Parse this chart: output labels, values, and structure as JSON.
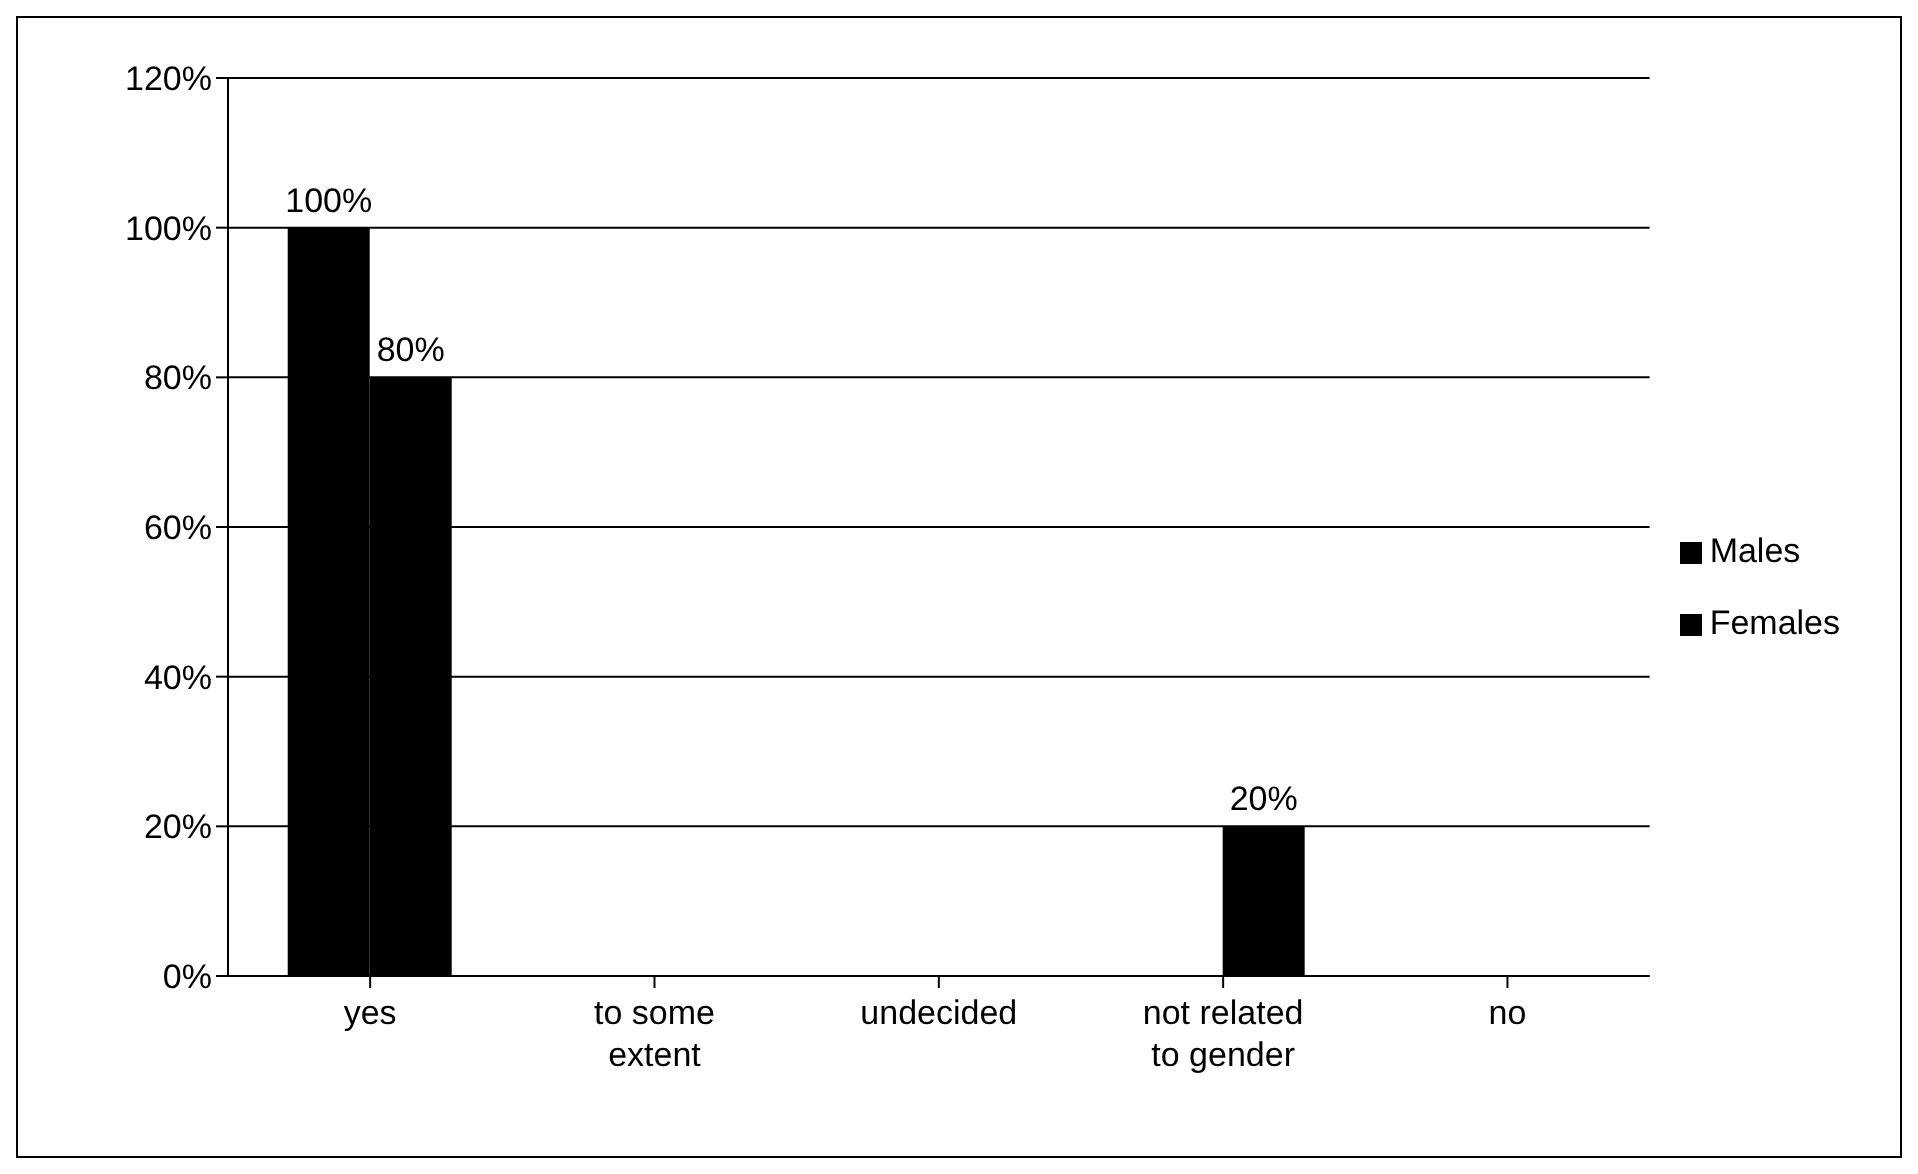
{
  "chart_data": {
    "type": "bar",
    "categories": [
      "yes",
      "to some extent",
      "undecided",
      "not related to gender",
      "no"
    ],
    "series": [
      {
        "name": "Males",
        "color": "#000000",
        "values": [
          100,
          0,
          0,
          0,
          0
        ],
        "value_labels": [
          "100%",
          null,
          null,
          null,
          null
        ]
      },
      {
        "name": "Females",
        "color": "#000000",
        "values": [
          80,
          0,
          0,
          20,
          0
        ],
        "value_labels": [
          "80%",
          null,
          null,
          "20%",
          null
        ]
      }
    ],
    "ylim": [
      0,
      120
    ],
    "yticks": [
      {
        "value": 0,
        "label": "0%"
      },
      {
        "value": 20,
        "label": "20%"
      },
      {
        "value": 40,
        "label": "40%"
      },
      {
        "value": 60,
        "label": "60%"
      },
      {
        "value": 80,
        "label": "80%"
      },
      {
        "value": 100,
        "label": "100%"
      },
      {
        "value": 120,
        "label": "120%"
      }
    ],
    "grid": "y",
    "legend": "right"
  }
}
